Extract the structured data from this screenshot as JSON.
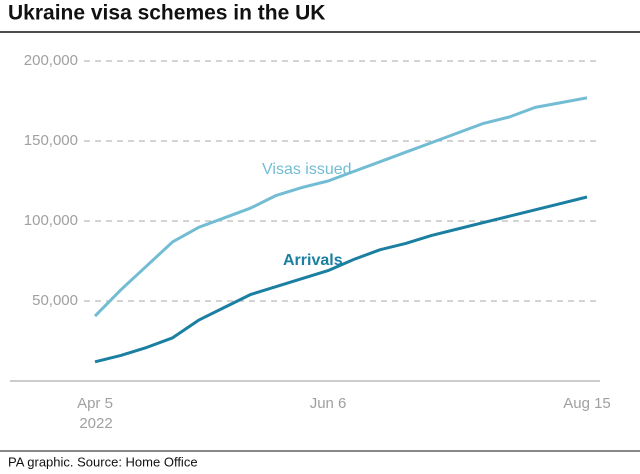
{
  "chart_data": {
    "type": "line",
    "title": "Ukraine visa schemes in the UK",
    "source": "PA graphic. Source: Home Office",
    "categories": [
      "Apr 5",
      null,
      null,
      null,
      null,
      null,
      null,
      null,
      null,
      "Jun 6",
      null,
      null,
      null,
      null,
      null,
      null,
      null,
      null,
      null,
      "Aug 15"
    ],
    "year": "2022",
    "series": [
      {
        "name": "Visas issued",
        "color": "#72bcd4",
        "values": [
          40600,
          57000,
          72000,
          87000,
          96000,
          102000,
          108000,
          116000,
          121000,
          125000,
          131000,
          137000,
          143000,
          149000,
          155000,
          161000,
          165000,
          171000,
          174000,
          177000
        ]
      },
      {
        "name": "Arrivals",
        "color": "#1b7fa1",
        "values": [
          12000,
          16000,
          21000,
          27000,
          38000,
          46000,
          54000,
          59000,
          64000,
          69000,
          76000,
          82000,
          86000,
          91000,
          95000,
          99000,
          103000,
          107000,
          111000,
          115000
        ]
      }
    ],
    "ylim": [
      0,
      200000
    ],
    "yticks": [
      {
        "value": 50000,
        "label": "50,000"
      },
      {
        "value": 100000,
        "label": "100,000"
      },
      {
        "value": 150000,
        "label": "150,000"
      },
      {
        "value": 200000,
        "label": "200,000"
      }
    ],
    "grid": true
  }
}
